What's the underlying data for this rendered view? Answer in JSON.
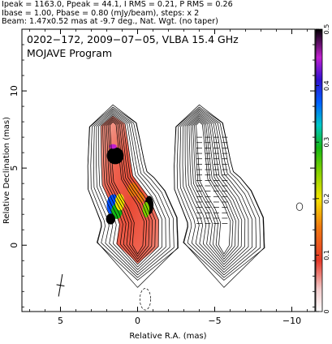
{
  "header": {
    "line1": "Ipeak = 1163.0, Ppeak = 44.1, I RMS = 0.21, P RMS = 0.26",
    "line2": "Ibase = 1.00, Pbase = 0.80 (mJy/beam), steps: x 2",
    "line3": "Beam: 1.47x0.52 mas at -9.7 deg., Nat. Wgt. (no taper)"
  },
  "panel": {
    "title": "0202−172, 2009−07−05, VLBA 15.4 GHz",
    "subtitle": "MOJAVE Program"
  },
  "chart_data": {
    "type": "heatmap",
    "description_free": true,
    "xlabel": "Relative R.A. (mas)",
    "ylabel": "Relative Declination (mas)",
    "xlim": [
      7.5,
      -11.5
    ],
    "ylim": [
      -4.3,
      14.0
    ],
    "xticks": [
      5,
      0,
      -5,
      -10
    ],
    "xtick_labels": [
      "5",
      "0",
      "−5",
      "−10"
    ],
    "yticks": [
      0,
      5,
      10
    ],
    "ytick_labels": [
      "0",
      "5",
      "10"
    ],
    "colorbar": {
      "range": [
        0,
        0.5
      ],
      "ticks": [
        0,
        0.1,
        0.2,
        0.3,
        0.4,
        0.5
      ],
      "tick_labels": [
        "0",
        "0.1",
        "0.2",
        "0.3",
        "0.4",
        "0.5"
      ]
    },
    "beam": {
      "major_mas": 1.47,
      "minor_mas": 0.52,
      "pa_deg": -9.7,
      "center": [
        5.0,
        -2.6
      ]
    },
    "contour_levels_mJy": [
      1,
      2,
      4,
      8,
      16,
      32,
      64,
      128,
      256,
      512,
      1024
    ],
    "jet_path": [
      [
        0.0,
        0.0
      ],
      [
        -0.1,
        1.5
      ],
      [
        0.3,
        2.5
      ],
      [
        0.8,
        3.3
      ],
      [
        1.3,
        4.2
      ],
      [
        1.4,
        5.3
      ],
      [
        1.5,
        6.6
      ],
      [
        1.6,
        7.8
      ]
    ],
    "panel_offset_ra": 5.6
  },
  "colors": {
    "frame": "#000000",
    "contour": "#000000",
    "polarization_ticks": "#000000"
  }
}
